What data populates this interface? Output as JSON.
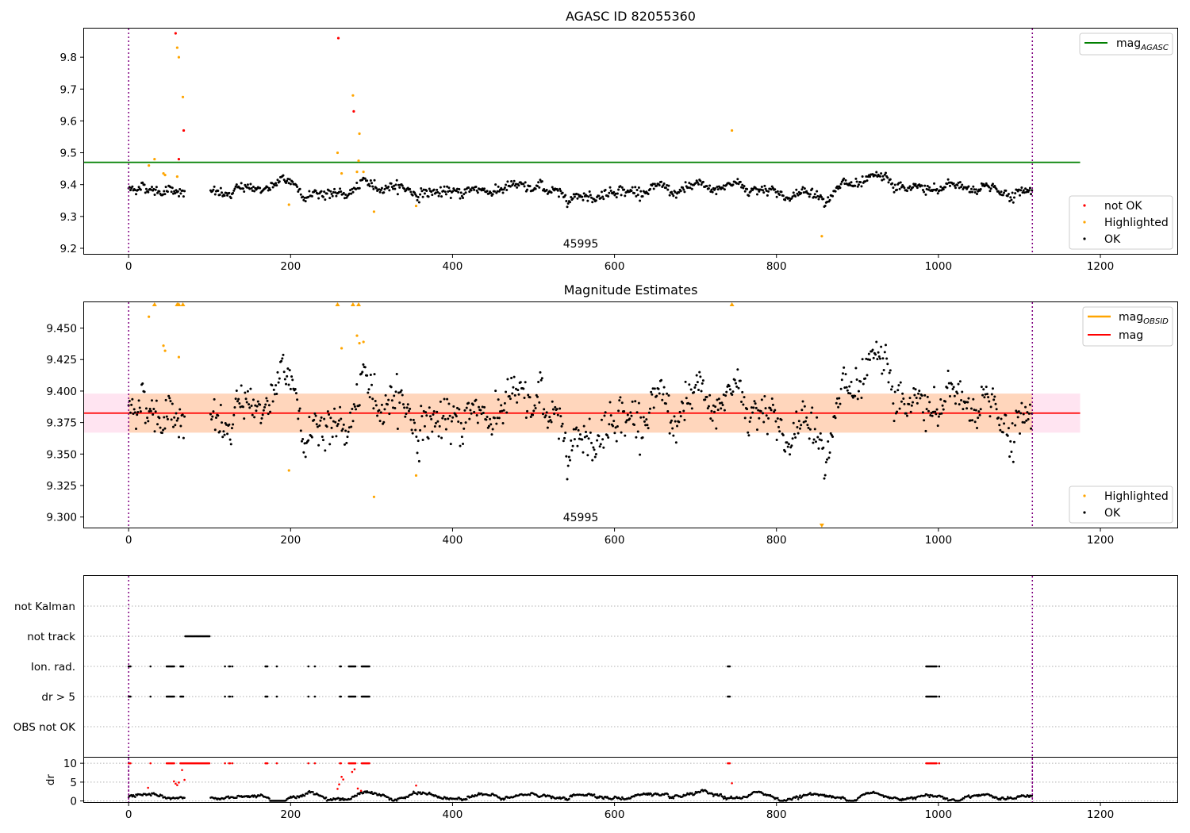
{
  "chart_data": [
    {
      "type": "scatter",
      "id": "agasc",
      "title": "AGASC ID 82055360",
      "xlim": [
        -55,
        1295
      ],
      "ylim": [
        9.18,
        9.89
      ],
      "xticks": [
        0,
        200,
        400,
        600,
        800,
        1000,
        1200
      ],
      "yticks": [
        9.2,
        9.3,
        9.4,
        9.5,
        9.6,
        9.7,
        9.8
      ],
      "ytick_labels": [
        "9.2",
        "9.3",
        "9.4",
        "9.5",
        "9.6",
        "9.7",
        "9.8"
      ],
      "vlines": [
        0,
        1116
      ],
      "annotation": {
        "text": "45995",
        "x": 558
      },
      "reference_line": {
        "name": "mag_AGASC",
        "label_main": "mag",
        "label_sub": "AGASC",
        "y": 9.47,
        "x_range": [
          -55,
          1175
        ],
        "color": "#008000"
      },
      "series_style": [
        {
          "name": "not OK",
          "color": "#ff0000"
        },
        {
          "name": "Highlighted",
          "color": "#ffa500"
        },
        {
          "name": "OK",
          "color": "#000000"
        }
      ],
      "base_level": 9.383,
      "noise": 0.014,
      "highlighted_points": [
        [
          25,
          9.46
        ],
        [
          32,
          9.48
        ],
        [
          43,
          9.435
        ],
        [
          45,
          9.43
        ],
        [
          60,
          9.425
        ],
        [
          60,
          9.83
        ],
        [
          62,
          9.8
        ],
        [
          67,
          9.675
        ],
        [
          258,
          9.5
        ],
        [
          263,
          9.435
        ],
        [
          277,
          9.68
        ],
        [
          282,
          9.44
        ],
        [
          284,
          9.475
        ],
        [
          285,
          9.56
        ],
        [
          290,
          9.44
        ],
        [
          303,
          9.315
        ],
        [
          355,
          9.333
        ],
        [
          198,
          9.337
        ],
        [
          745,
          9.57
        ],
        [
          856,
          9.238
        ]
      ],
      "not_ok_points": [
        [
          58,
          9.875
        ],
        [
          62,
          9.48
        ],
        [
          68,
          9.57
        ],
        [
          259,
          9.86
        ],
        [
          278,
          9.63
        ]
      ],
      "legend_markers": {
        "position": "lower-right",
        "entries": [
          "not OK",
          "Highlighted",
          "OK"
        ]
      },
      "legend_lines": {
        "position": "upper-right",
        "entries": [
          "mag_AGASC"
        ]
      }
    },
    {
      "type": "scatter",
      "id": "estimates",
      "title": "Magnitude Estimates",
      "xlim": [
        -55,
        1295
      ],
      "ylim": [
        9.291,
        9.4705
      ],
      "xticks": [
        0,
        200,
        400,
        600,
        800,
        1000,
        1200
      ],
      "yticks": [
        9.3,
        9.325,
        9.35,
        9.375,
        9.4,
        9.425,
        9.45
      ],
      "ytick_labels": [
        "9.300",
        "9.325",
        "9.350",
        "9.375",
        "9.400",
        "9.425",
        "9.450"
      ],
      "vlines": [
        0,
        1116
      ],
      "annotation": {
        "text": "45995",
        "x": 558
      },
      "mag_line": {
        "name": "mag",
        "y": 9.3825,
        "x_range": [
          -55,
          1175
        ],
        "color": "#ff0000"
      },
      "mag_band": {
        "y_low": 9.367,
        "y_high": 9.398,
        "x_range": [
          -55,
          1175
        ],
        "color": "#ff69b4"
      },
      "obsid_band": {
        "name": "mag_OBSID",
        "label_main": "mag",
        "label_sub": "OBSID",
        "y_low": 9.367,
        "y_high": 9.398,
        "x_range": [
          0,
          1116
        ],
        "color": "#ffa500"
      },
      "base_level": 9.383,
      "noise": 0.014,
      "highlighted_points": [
        [
          25,
          9.459
        ],
        [
          43,
          9.436
        ],
        [
          45,
          9.432
        ],
        [
          62,
          9.427
        ],
        [
          263,
          9.434
        ],
        [
          282,
          9.444
        ],
        [
          285,
          9.438
        ],
        [
          290,
          9.439
        ],
        [
          198,
          9.337
        ],
        [
          303,
          9.316
        ],
        [
          355,
          9.333
        ]
      ],
      "clipped_up": [
        32,
        60,
        62,
        67,
        258,
        277,
        284,
        745
      ],
      "clipped_down": [
        856
      ],
      "legend_lines": {
        "position": "upper-right",
        "entries": [
          "mag_OBSID",
          "mag"
        ]
      },
      "legend_markers": {
        "position": "lower-right",
        "entries": [
          "Highlighted",
          "OK"
        ]
      }
    },
    {
      "type": "flags",
      "id": "flags",
      "xlim": [
        -55,
        1295
      ],
      "categories": [
        "not Kalman",
        "not track",
        "Ion. rad.",
        "dr > 5",
        "OBS not OK"
      ],
      "flag_ranges": {
        "not track": [
          [
            70,
            100
          ]
        ],
        "Ion. rad.": [
          [
            0,
            3
          ],
          [
            27,
            28
          ],
          [
            47,
            57
          ],
          [
            64,
            68
          ],
          [
            119,
            120
          ],
          [
            124,
            126
          ],
          [
            128,
            129
          ],
          [
            169,
            172
          ],
          [
            183,
            184
          ],
          [
            222,
            223
          ],
          [
            230,
            231
          ],
          [
            261,
            263
          ],
          [
            272,
            281
          ],
          [
            288,
            298
          ],
          [
            740,
            743
          ],
          [
            985,
            998
          ],
          [
            1001,
            1002
          ]
        ],
        "dr > 5": [
          [
            0,
            3
          ],
          [
            27,
            28
          ],
          [
            47,
            57
          ],
          [
            64,
            68
          ],
          [
            119,
            120
          ],
          [
            124,
            126
          ],
          [
            128,
            129
          ],
          [
            169,
            172
          ],
          [
            183,
            184
          ],
          [
            222,
            223
          ],
          [
            230,
            231
          ],
          [
            261,
            263
          ],
          [
            272,
            281
          ],
          [
            288,
            298
          ],
          [
            740,
            743
          ],
          [
            985,
            998
          ],
          [
            1001,
            1002
          ]
        ],
        "not Kalman": [],
        "OBS not OK": []
      },
      "vlines": [
        0,
        1116
      ]
    },
    {
      "type": "scatter",
      "id": "dr",
      "ylabel": "dr",
      "xlim": [
        -55,
        1295
      ],
      "ylim": [
        -0.5,
        11.5
      ],
      "xticks": [
        0,
        200,
        400,
        600,
        800,
        1000,
        1200
      ],
      "yticks": [
        0,
        5,
        10
      ],
      "ytick_labels": [
        "0",
        "5",
        "10"
      ],
      "clip_value": 10,
      "clipped_ranges": [
        [
          0,
          3
        ],
        [
          27,
          28
        ],
        [
          47,
          57
        ],
        [
          64,
          100
        ],
        [
          119,
          120
        ],
        [
          124,
          126
        ],
        [
          128,
          129
        ],
        [
          169,
          172
        ],
        [
          183,
          184
        ],
        [
          222,
          223
        ],
        [
          230,
          231
        ],
        [
          261,
          263
        ],
        [
          272,
          281
        ],
        [
          288,
          298
        ],
        [
          740,
          743
        ],
        [
          985,
          998
        ],
        [
          1001,
          1002
        ]
      ],
      "red_points": [
        [
          24,
          3.5
        ],
        [
          56,
          5.2
        ],
        [
          58,
          4.6
        ],
        [
          60,
          4.2
        ],
        [
          62,
          4.9
        ],
        [
          66,
          8.2
        ],
        [
          69,
          5.6
        ],
        [
          258,
          3.2
        ],
        [
          260,
          4.4
        ],
        [
          263,
          6.4
        ],
        [
          265,
          5.7
        ],
        [
          276,
          7.7
        ],
        [
          279,
          8.4
        ],
        [
          283,
          3.3
        ],
        [
          287,
          2.7
        ],
        [
          355,
          4.1
        ],
        [
          745,
          4.7
        ]
      ],
      "base_level": 1.2,
      "noise": 0.35,
      "vlines": [
        0,
        1116
      ]
    }
  ]
}
